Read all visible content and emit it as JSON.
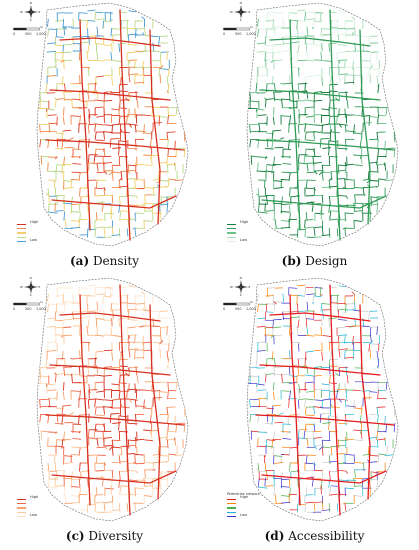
{
  "panels": [
    {
      "id": "a",
      "letter": "(a)",
      "caption": "Density",
      "legend": {
        "title": "",
        "labels": [
          "High",
          "",
          "",
          "",
          "Low"
        ],
        "colors": [
          "#d7301f",
          "#f08a4b",
          "#f2d06a",
          "#b8d98a",
          "#4a9bd1"
        ]
      },
      "palette": [
        "#d7301f",
        "#e34a33",
        "#f08a4b",
        "#f2d06a",
        "#b8d98a",
        "#4a9bd1"
      ]
    },
    {
      "id": "b",
      "letter": "(b)",
      "caption": "Design",
      "legend": {
        "title": "",
        "labels": [
          "High",
          "",
          "",
          "",
          "Low"
        ],
        "colors": [
          "#137a3a",
          "#2f9a55",
          "#6cc08a",
          "#a8dcb8",
          "#dcf1e3"
        ]
      },
      "palette": [
        "#137a3a",
        "#2f9a55",
        "#6cc08a",
        "#a8dcb8",
        "#dcf1e3"
      ]
    },
    {
      "id": "c",
      "letter": "(c)",
      "caption": "Diversity",
      "legend": {
        "title": "",
        "labels": [
          "High",
          "",
          "",
          "",
          "Low"
        ],
        "colors": [
          "#d7301f",
          "#ef6548",
          "#f7a26d",
          "#fcc89a",
          "#fde5cc"
        ]
      },
      "palette": [
        "#d7301f",
        "#ef6548",
        "#f7a26d",
        "#fcc89a",
        "#fde5cc"
      ]
    },
    {
      "id": "d",
      "letter": "(d)",
      "caption": "Accessibility",
      "legend": {
        "title": "Pedestrian network",
        "labels": [
          "High",
          "",
          "",
          "",
          "Low"
        ],
        "colors": [
          "#e41a1c",
          "#ff7f00",
          "#4daf4a",
          "#1fb7d6",
          "#3b2fc9"
        ]
      },
      "palette": [
        "#e41a1c",
        "#ff7f00",
        "#4daf4a",
        "#1fb7d6",
        "#3b2fc9",
        "#c8c8c8"
      ]
    }
  ],
  "scale_bar": {
    "ticks": [
      "0",
      "500",
      "1,000"
    ],
    "unit": "m"
  },
  "compass": {
    "n": "N",
    "s": "S",
    "e": "E",
    "w": "W"
  }
}
